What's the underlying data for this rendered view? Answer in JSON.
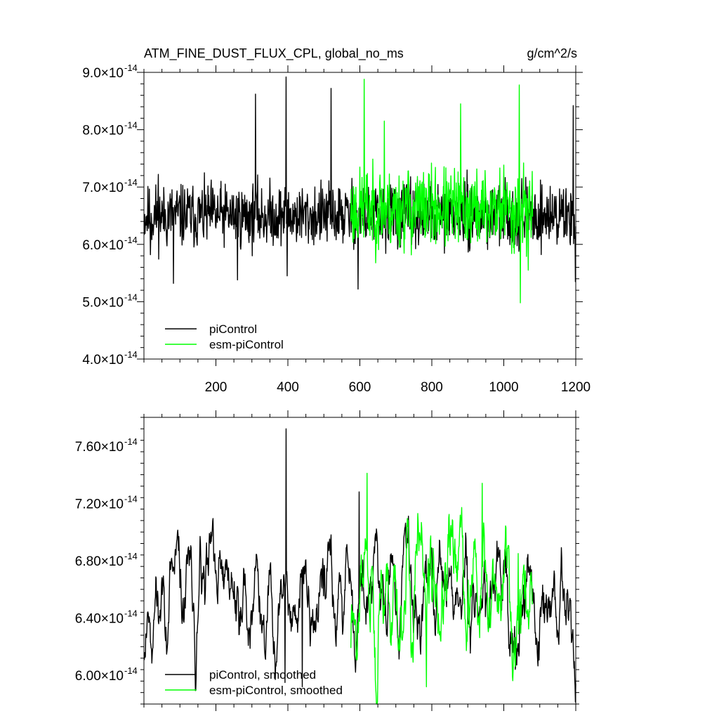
{
  "chart_data": [
    {
      "type": "line",
      "title": "ATM_FINE_DUST_FLUX_CPL, global_no_ms",
      "units": "g/cm^2/s",
      "xlim": [
        0,
        1200
      ],
      "ylim": [
        4e-14,
        9e-14
      ],
      "xticks": [
        200,
        400,
        600,
        800,
        1000,
        1200
      ],
      "xtick_labels": [
        "200",
        "400",
        "600",
        "800",
        "1000",
        "1200"
      ],
      "yticks": [
        4e-14,
        5e-14,
        6e-14,
        7e-14,
        8e-14,
        9e-14
      ],
      "ytick_mantissas": [
        "4.0",
        "5.0",
        "6.0",
        "7.0",
        "8.0",
        "9.0"
      ],
      "ytick_times": "×10",
      "ytick_exponent": "-14",
      "legend_position": "bottom-left",
      "series": [
        {
          "name": "piControl",
          "color": "#000000",
          "x_range": [
            1,
            1200
          ],
          "n_points": 1200,
          "seed": 11,
          "mean": 6.5e-14,
          "sd": 4.8e-15,
          "smooth_window": 1,
          "anchors": [
            [
              18,
              5.82e-14
            ],
            [
              40,
              7.22e-14
            ],
            [
              82,
              5.32e-14
            ],
            [
              260,
              5.38e-14
            ],
            [
              310,
              8.62e-14
            ],
            [
              395,
              8.92e-14
            ],
            [
              398,
              5.45e-14
            ],
            [
              520,
              8.72e-14
            ],
            [
              595,
              5.22e-14
            ],
            [
              1193,
              8.42e-14
            ],
            [
              1199,
              5.35e-14
            ]
          ]
        },
        {
          "name": "esm-piControl",
          "color": "#00ff00",
          "x_range": [
            575,
            1080
          ],
          "n_points": 506,
          "seed": 23,
          "mean": 6.62e-14,
          "sd": 6.2e-15,
          "smooth_window": 1,
          "anchors": [
            [
              612,
              8.88e-14
            ],
            [
              668,
              8.15e-14
            ],
            [
              880,
              8.45e-14
            ],
            [
              1043,
              8.78e-14
            ],
            [
              1046,
              4.98e-14
            ],
            [
              1068,
              5.55e-14
            ]
          ]
        }
      ]
    },
    {
      "type": "line",
      "title": "",
      "xlim": [
        0,
        1200
      ],
      "ylim": [
        5.8e-14,
        7.8e-14
      ],
      "xticks": [
        200,
        400,
        600,
        800,
        1000,
        1200
      ],
      "yticks": [
        6e-14,
        6.4e-14,
        6.8e-14,
        7.2e-14,
        7.6e-14
      ],
      "ytick_mantissas": [
        "6.00",
        "6.40",
        "6.80",
        "7.20",
        "7.60"
      ],
      "ytick_times": "×10",
      "ytick_exponent": "-14",
      "legend_position": "bottom-left",
      "series": [
        {
          "name": "piControl, smoothed",
          "color": "#000000",
          "x_range": [
            1,
            1200
          ],
          "n_points": 1200,
          "seed": 11,
          "mean": 6.55e-14,
          "sd": 4.8e-15,
          "smooth_window": 12,
          "anchors": [
            [
              395,
              7.72e-14
            ],
            [
              392,
              5.95e-14
            ],
            [
              440,
              5.92e-14
            ],
            [
              598,
              7.28e-14
            ],
            [
              1195,
              6.05e-14
            ]
          ]
        },
        {
          "name": "esm-piControl, smoothed",
          "color": "#00ff00",
          "x_range": [
            575,
            1080
          ],
          "n_points": 506,
          "seed": 23,
          "mean": 6.58e-14,
          "sd": 6.2e-15,
          "smooth_window": 12,
          "anchors": [
            [
              620,
              7.41e-14
            ],
            [
              785,
              5.92e-14
            ],
            [
              940,
              7.34e-14
            ],
            [
              1040,
              6.85e-14
            ]
          ]
        }
      ]
    }
  ]
}
